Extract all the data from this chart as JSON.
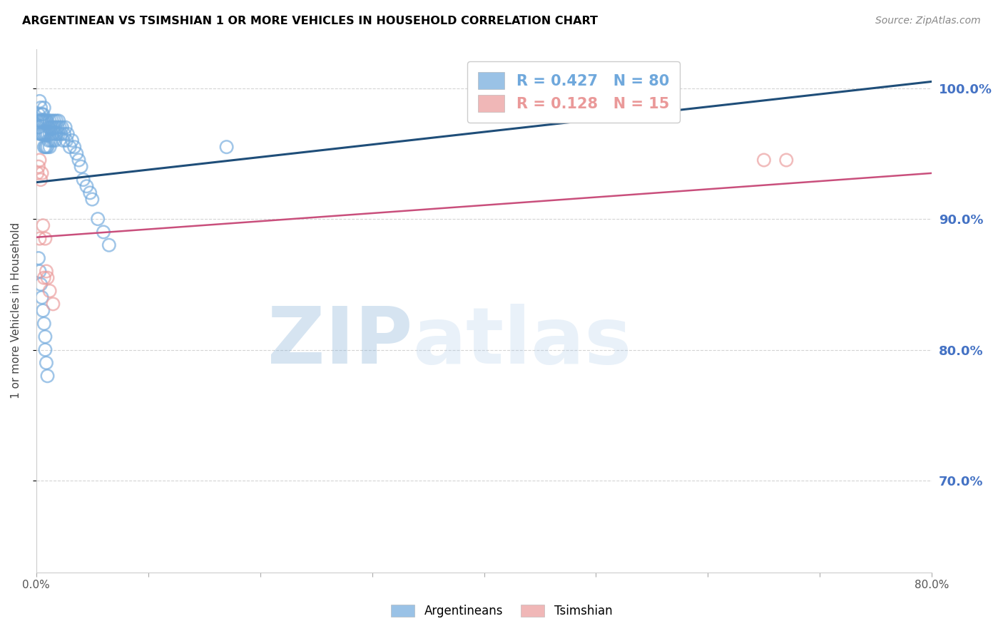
{
  "title": "ARGENTINEAN VS TSIMSHIAN 1 OR MORE VEHICLES IN HOUSEHOLD CORRELATION CHART",
  "source": "Source: ZipAtlas.com",
  "ylabel_left": "1 or more Vehicles in Household",
  "xlim": [
    0.0,
    0.8
  ],
  "ylim": [
    0.63,
    1.03
  ],
  "legend_entries": [
    {
      "label_r": "R = ",
      "label_r_val": "0.427",
      "label_n": "   N = ",
      "label_n_val": "80",
      "color": "#6fa8dc"
    },
    {
      "label_r": "R = ",
      "label_r_val": "0.128",
      "label_n": "   N = ",
      "label_n_val": "15",
      "color": "#ea9999"
    }
  ],
  "watermark_zip": "ZIP",
  "watermark_atlas": "atlas",
  "watermark_color": "#c9daf8",
  "background_color": "#ffffff",
  "grid_color": "#aaaaaa",
  "title_color": "#000000",
  "source_color": "#888888",
  "right_label_color": "#4472c4",
  "blue_scatter_color": "#6fa8dc",
  "pink_scatter_color": "#ea9999",
  "blue_line_color": "#1f4e79",
  "pink_line_color": "#c94f7c",
  "blue_line_x0": 0.0,
  "blue_line_y0": 0.928,
  "blue_line_x1": 0.8,
  "blue_line_y1": 1.005,
  "pink_line_x0": 0.0,
  "pink_line_y0": 0.886,
  "pink_line_x1": 0.8,
  "pink_line_y1": 0.935,
  "blue_points_x": [
    0.001,
    0.002,
    0.002,
    0.003,
    0.003,
    0.003,
    0.004,
    0.004,
    0.004,
    0.005,
    0.005,
    0.005,
    0.006,
    0.006,
    0.006,
    0.007,
    0.007,
    0.007,
    0.007,
    0.008,
    0.008,
    0.008,
    0.009,
    0.009,
    0.009,
    0.01,
    0.01,
    0.01,
    0.011,
    0.011,
    0.012,
    0.012,
    0.012,
    0.013,
    0.013,
    0.014,
    0.014,
    0.015,
    0.015,
    0.016,
    0.016,
    0.017,
    0.017,
    0.018,
    0.018,
    0.019,
    0.02,
    0.02,
    0.021,
    0.022,
    0.023,
    0.024,
    0.025,
    0.026,
    0.027,
    0.028,
    0.03,
    0.032,
    0.034,
    0.036,
    0.038,
    0.04,
    0.042,
    0.045,
    0.048,
    0.05,
    0.055,
    0.06,
    0.065,
    0.002,
    0.003,
    0.004,
    0.005,
    0.006,
    0.007,
    0.008,
    0.17,
    0.008,
    0.009,
    0.01
  ],
  "blue_points_y": [
    0.975,
    0.98,
    0.97,
    0.99,
    0.975,
    0.965,
    0.985,
    0.975,
    0.965,
    0.98,
    0.975,
    0.965,
    0.98,
    0.975,
    0.965,
    0.985,
    0.975,
    0.965,
    0.955,
    0.975,
    0.965,
    0.955,
    0.975,
    0.965,
    0.955,
    0.975,
    0.965,
    0.955,
    0.97,
    0.96,
    0.975,
    0.965,
    0.955,
    0.97,
    0.96,
    0.975,
    0.965,
    0.97,
    0.96,
    0.975,
    0.965,
    0.97,
    0.96,
    0.975,
    0.965,
    0.97,
    0.975,
    0.965,
    0.97,
    0.965,
    0.97,
    0.96,
    0.965,
    0.97,
    0.96,
    0.965,
    0.955,
    0.96,
    0.955,
    0.95,
    0.945,
    0.94,
    0.93,
    0.925,
    0.92,
    0.915,
    0.9,
    0.89,
    0.88,
    0.87,
    0.86,
    0.85,
    0.84,
    0.83,
    0.82,
    0.81,
    0.955,
    0.8,
    0.79,
    0.78
  ],
  "pink_points_x": [
    0.001,
    0.002,
    0.003,
    0.003,
    0.004,
    0.005,
    0.006,
    0.007,
    0.008,
    0.009,
    0.01,
    0.012,
    0.015,
    0.65,
    0.67
  ],
  "pink_points_y": [
    0.935,
    0.94,
    0.945,
    0.885,
    0.93,
    0.935,
    0.895,
    0.855,
    0.885,
    0.86,
    0.855,
    0.845,
    0.835,
    0.945,
    0.945
  ],
  "ytick_vals": [
    0.7,
    0.8,
    0.9,
    1.0
  ],
  "right_ytick_labels": [
    "70.0%",
    "80.0%",
    "90.0%",
    "100.0%"
  ],
  "xtick_vals": [
    0.0,
    0.1,
    0.2,
    0.3,
    0.4,
    0.5,
    0.6,
    0.7,
    0.8
  ],
  "xtick_labels": [
    "0.0%",
    "",
    "",
    "",
    "",
    "",
    "",
    "",
    "80.0%"
  ]
}
